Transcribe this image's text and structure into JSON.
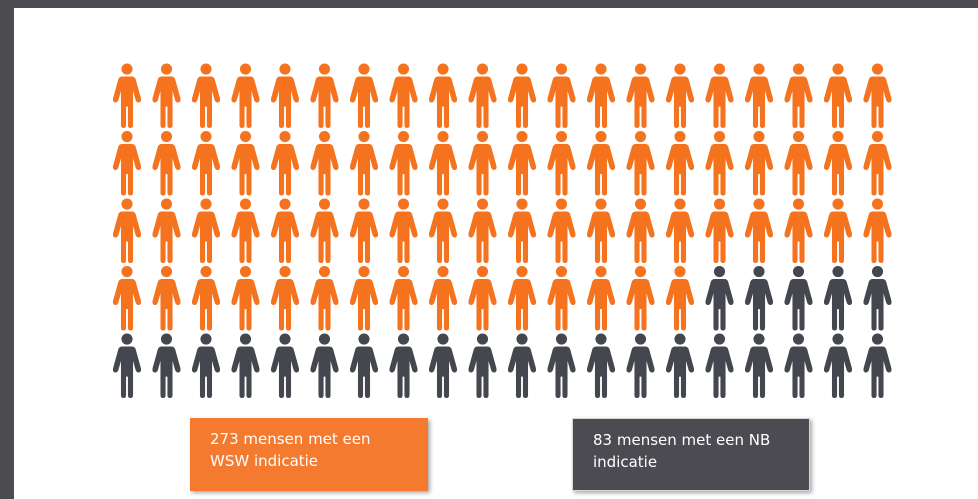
{
  "chart_data": {
    "type": "pictogram",
    "columns": 20,
    "rows": 5,
    "series": [
      {
        "name": "273 mensen met een WSW indicatie",
        "icon_count": 75,
        "color": "#f5731f"
      },
      {
        "name": "83 mensen met een NB indicatie",
        "icon_count": 25,
        "color": "#44474d"
      }
    ],
    "legend": [
      {
        "label": "273 mensen met een WSW indicatie",
        "color": "#f47a30"
      },
      {
        "label": "83 mensen met een NB indicatie",
        "color": "#4d4b52"
      }
    ]
  },
  "icon": "person-icon"
}
